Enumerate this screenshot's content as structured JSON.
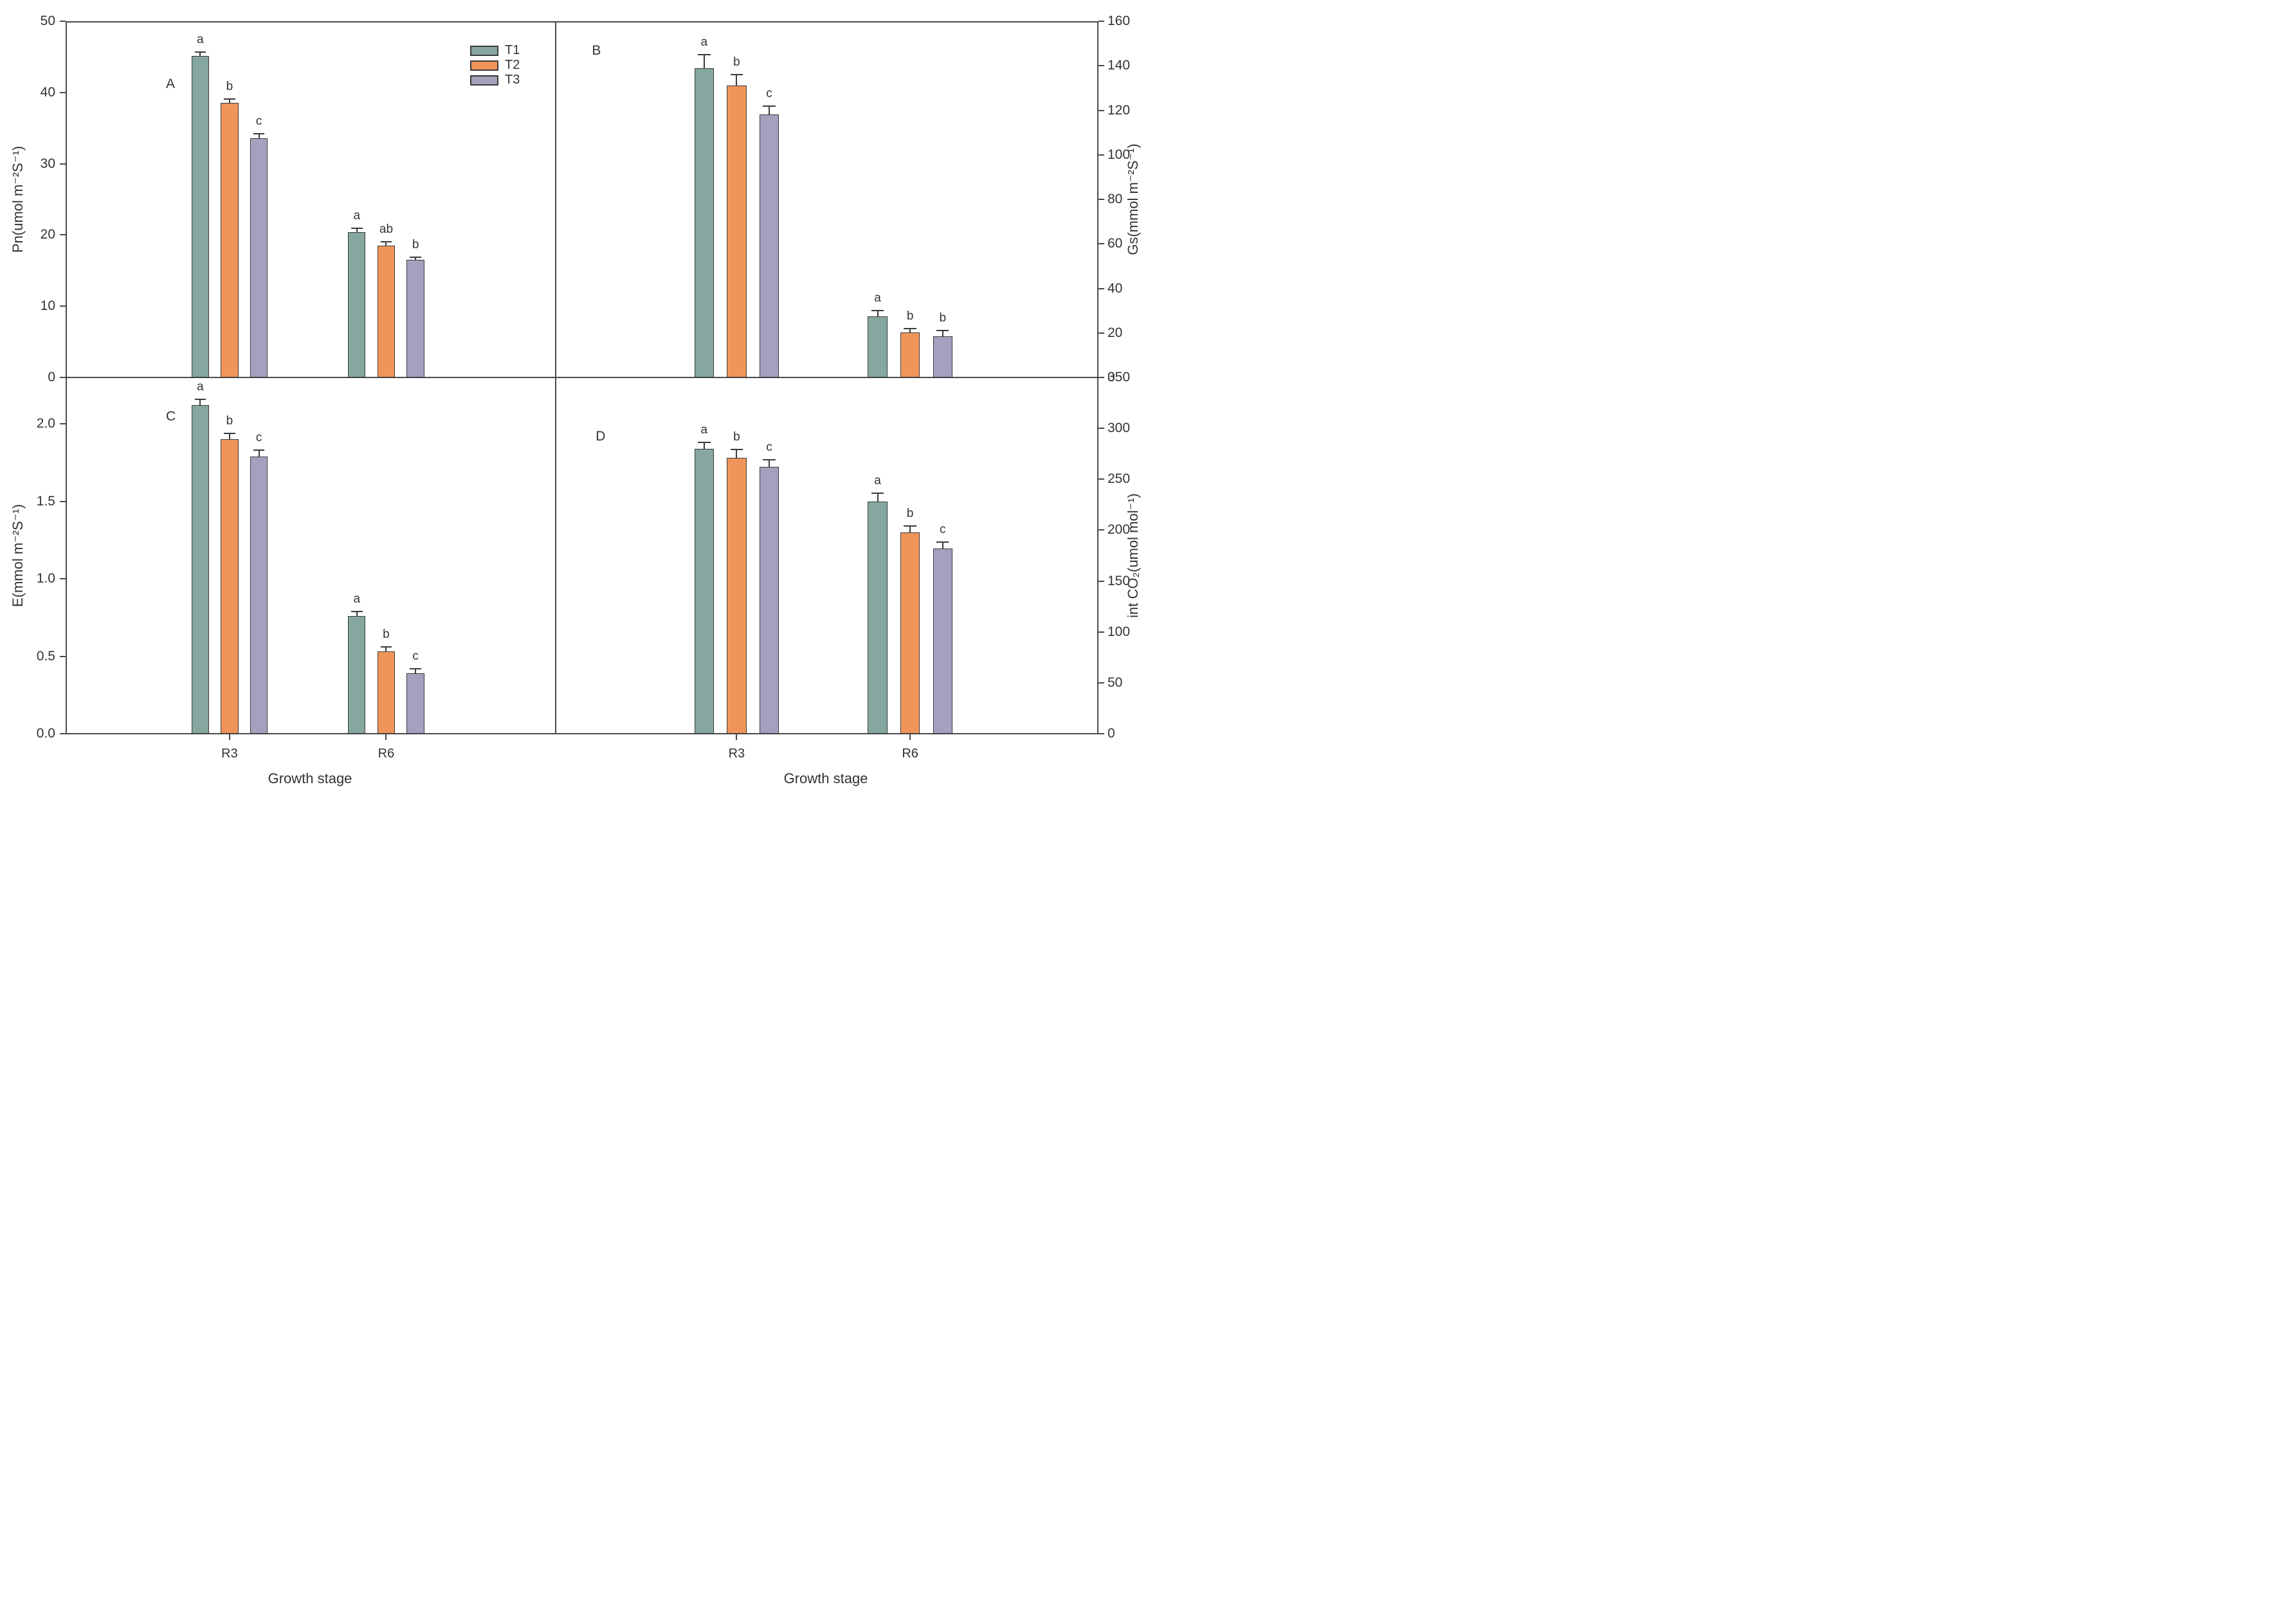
{
  "figure": {
    "xlabel": "Growth stage",
    "categories": [
      "R3",
      "R6"
    ],
    "legend": {
      "items": [
        {
          "label": "T1"
        },
        {
          "label": "T2"
        },
        {
          "label": "T3"
        }
      ]
    },
    "colors": {
      "T1": "#85A79F",
      "T2": "#F0955A",
      "T3": "#A5A0BE",
      "frame": "#4a4a4a",
      "text": "#333333"
    }
  },
  "chart_data": [
    {
      "type": "bar",
      "panel_label": "A",
      "ylabel": "Pn(umol m⁻²S⁻¹)",
      "axis_side": "left",
      "ylim": [
        0,
        50
      ],
      "yticks": [
        "0",
        "10",
        "20",
        "30",
        "40",
        "50"
      ],
      "categories": [
        "R3",
        "R6"
      ],
      "grid": false,
      "series": [
        {
          "name": "T1",
          "color": "#85A79F",
          "values": [
            45.1,
            20.4
          ],
          "errors": [
            0.6,
            0.5
          ],
          "letters": [
            "a",
            "a"
          ]
        },
        {
          "name": "T2",
          "color": "#F0955A",
          "values": [
            38.5,
            18.5
          ],
          "errors": [
            0.6,
            0.5
          ],
          "letters": [
            "b",
            "ab"
          ]
        },
        {
          "name": "T3",
          "color": "#A5A0BE",
          "values": [
            33.6,
            16.5
          ],
          "errors": [
            0.6,
            0.4
          ],
          "letters": [
            "c",
            "b"
          ]
        }
      ]
    },
    {
      "type": "bar",
      "panel_label": "B",
      "ylabel": "Gs(mmol m⁻²S⁻¹)",
      "axis_side": "right",
      "ylim": [
        0,
        160
      ],
      "yticks": [
        "0",
        "20",
        "40",
        "60",
        "80",
        "100",
        "120",
        "140",
        "160"
      ],
      "categories": [
        "R3",
        "R6"
      ],
      "grid": false,
      "series": [
        {
          "name": "T1",
          "color": "#85A79F",
          "values": [
            139,
            27.5
          ],
          "errors": [
            6,
            2.5
          ],
          "letters": [
            "a",
            "a"
          ]
        },
        {
          "name": "T2",
          "color": "#F0955A",
          "values": [
            131,
            20.3
          ],
          "errors": [
            5,
            1.7
          ],
          "letters": [
            "b",
            "b"
          ]
        },
        {
          "name": "T3",
          "color": "#A5A0BE",
          "values": [
            118,
            18.5
          ],
          "errors": [
            4,
            2.5
          ],
          "letters": [
            "c",
            "b"
          ]
        }
      ]
    },
    {
      "type": "bar",
      "panel_label": "C",
      "ylabel": "E(mmol m⁻²S⁻¹)",
      "axis_side": "left",
      "ylim": [
        0,
        2.3
      ],
      "yticks": [
        "0.0",
        "0.5",
        "1.0",
        "1.5",
        "2.0"
      ],
      "categories": [
        "R3",
        "R6"
      ],
      "grid": false,
      "series": [
        {
          "name": "T1",
          "color": "#85A79F",
          "values": [
            2.12,
            0.76
          ],
          "errors": [
            0.04,
            0.03
          ],
          "letters": [
            "a",
            "a"
          ]
        },
        {
          "name": "T2",
          "color": "#F0955A",
          "values": [
            1.9,
            0.53
          ],
          "errors": [
            0.04,
            0.03
          ],
          "letters": [
            "b",
            "b"
          ]
        },
        {
          "name": "T3",
          "color": "#A5A0BE",
          "values": [
            1.79,
            0.39
          ],
          "errors": [
            0.04,
            0.03
          ],
          "letters": [
            "c",
            "c"
          ]
        }
      ]
    },
    {
      "type": "bar",
      "panel_label": "D",
      "ylabel": "int CO₂(umol mol⁻¹)",
      "axis_side": "right",
      "ylim": [
        0,
        350
      ],
      "yticks": [
        "0",
        "50",
        "100",
        "150",
        "200",
        "250",
        "300",
        "350"
      ],
      "categories": [
        "R3",
        "R6"
      ],
      "grid": false,
      "series": [
        {
          "name": "T1",
          "color": "#85A79F",
          "values": [
            280,
            228
          ],
          "errors": [
            6,
            8
          ],
          "letters": [
            "a",
            "a"
          ]
        },
        {
          "name": "T2",
          "color": "#F0955A",
          "values": [
            271,
            198
          ],
          "errors": [
            8,
            6
          ],
          "letters": [
            "b",
            "b"
          ]
        },
        {
          "name": "T3",
          "color": "#A5A0BE",
          "values": [
            262,
            182
          ],
          "errors": [
            7,
            6
          ],
          "letters": [
            "c",
            "c"
          ]
        }
      ]
    }
  ]
}
